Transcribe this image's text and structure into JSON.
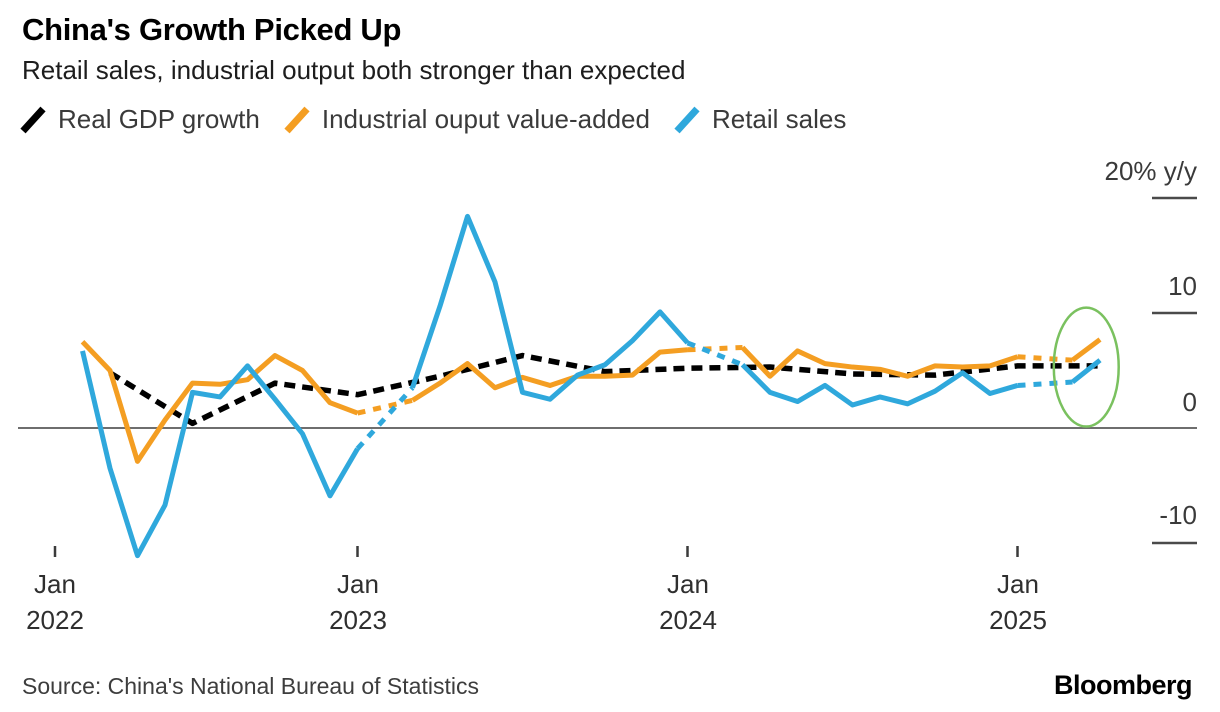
{
  "header": {
    "title": "China's Growth Picked Up",
    "subtitle": "Retail sales, industrial output both stronger than expected"
  },
  "legend": [
    {
      "label": "Real GDP growth",
      "color": "#000000"
    },
    {
      "label": "Industrial ouput value-added",
      "color": "#F49E22"
    },
    {
      "label": "Retail sales",
      "color": "#2FA8DC"
    }
  ],
  "y_axis": {
    "unit_label": "20% y/y",
    "ticks": [
      {
        "label": "20% y/y",
        "value": 20
      },
      {
        "label": "10",
        "value": 10
      },
      {
        "label": "0",
        "value": 0
      },
      {
        "label": "-10",
        "value": -10
      }
    ]
  },
  "x_axis": {
    "ticks": [
      {
        "month": "Jan",
        "year": "2022"
      },
      {
        "month": "Jan",
        "year": "2023"
      },
      {
        "month": "Jan",
        "year": "2024"
      },
      {
        "month": "Jan",
        "year": "2025"
      }
    ]
  },
  "footer": {
    "source": "Source: China's National Bureau of Statistics",
    "brand": "Bloomberg"
  },
  "chart_data": {
    "type": "line",
    "title": "China's Growth Picked Up",
    "subtitle": "Retail sales, industrial output both stronger than expected",
    "ylabel": "% y/y",
    "ylim": [
      -12,
      20
    ],
    "y_gridticks": [
      20,
      10,
      0,
      -10
    ],
    "x_note": "m = months since Jan 2022; China combines Jan-Feb data, so monthly series have no January points and dashed connectors bridge Dec to Feb",
    "x_tick_labels": [
      "Jan 2022",
      "Jan 2023",
      "Jan 2024",
      "Jan 2025"
    ],
    "legend_position": "top",
    "series": [
      {
        "name": "Real GDP growth",
        "color": "#000000",
        "line_style": "dashed",
        "frequency": "quarterly",
        "m": [
          2,
          5,
          8,
          11,
          14,
          17,
          20,
          23,
          26,
          29,
          32,
          35,
          38
        ],
        "values": [
          4.8,
          0.4,
          3.9,
          2.9,
          4.5,
          6.3,
          4.9,
          5.2,
          5.3,
          4.7,
          4.6,
          5.4,
          5.4
        ]
      },
      {
        "name": "Industrial ouput value-added",
        "color": "#F49E22",
        "line_style": "solid",
        "frequency": "monthly",
        "m": [
          1,
          2,
          3,
          4,
          5,
          6,
          7,
          8,
          9,
          10,
          11,
          13,
          14,
          15,
          16,
          17,
          18,
          19,
          20,
          21,
          22,
          23,
          25,
          26,
          27,
          28,
          29,
          30,
          31,
          32,
          33,
          34,
          35,
          37,
          38
        ],
        "values": [
          7.5,
          5.0,
          -2.9,
          0.7,
          3.9,
          3.8,
          4.2,
          6.3,
          5.0,
          2.2,
          1.3,
          2.4,
          3.9,
          5.6,
          3.5,
          4.4,
          3.7,
          4.5,
          4.5,
          4.6,
          6.6,
          6.8,
          7.0,
          4.5,
          6.7,
          5.6,
          5.3,
          5.1,
          4.5,
          5.4,
          5.3,
          5.4,
          6.2,
          5.9,
          7.7
        ]
      },
      {
        "name": "Retail sales",
        "color": "#2FA8DC",
        "line_style": "solid",
        "frequency": "monthly",
        "m": [
          1,
          2,
          3,
          4,
          5,
          6,
          7,
          8,
          9,
          10,
          11,
          13,
          14,
          15,
          16,
          17,
          18,
          19,
          20,
          21,
          22,
          23,
          25,
          26,
          27,
          28,
          29,
          30,
          31,
          32,
          33,
          34,
          35,
          37,
          38
        ],
        "values": [
          6.7,
          -3.5,
          -11.1,
          -6.7,
          3.1,
          2.7,
          5.4,
          2.5,
          -0.5,
          -5.9,
          -1.8,
          3.5,
          10.6,
          18.4,
          12.7,
          3.1,
          2.5,
          4.6,
          5.5,
          7.6,
          10.1,
          7.4,
          5.5,
          3.1,
          2.3,
          3.7,
          2.0,
          2.7,
          2.1,
          3.2,
          4.8,
          3.0,
          3.7,
          4.0,
          5.9
        ]
      }
    ],
    "highlight": {
      "shape": "ellipse",
      "color": "#7AC15F",
      "center_m": 37.5,
      "center_value": 5.3,
      "rx_months": 1.18,
      "ry_units": 5.17,
      "note": "green ellipse circling the latest Feb-Mar 2025 readings"
    }
  }
}
